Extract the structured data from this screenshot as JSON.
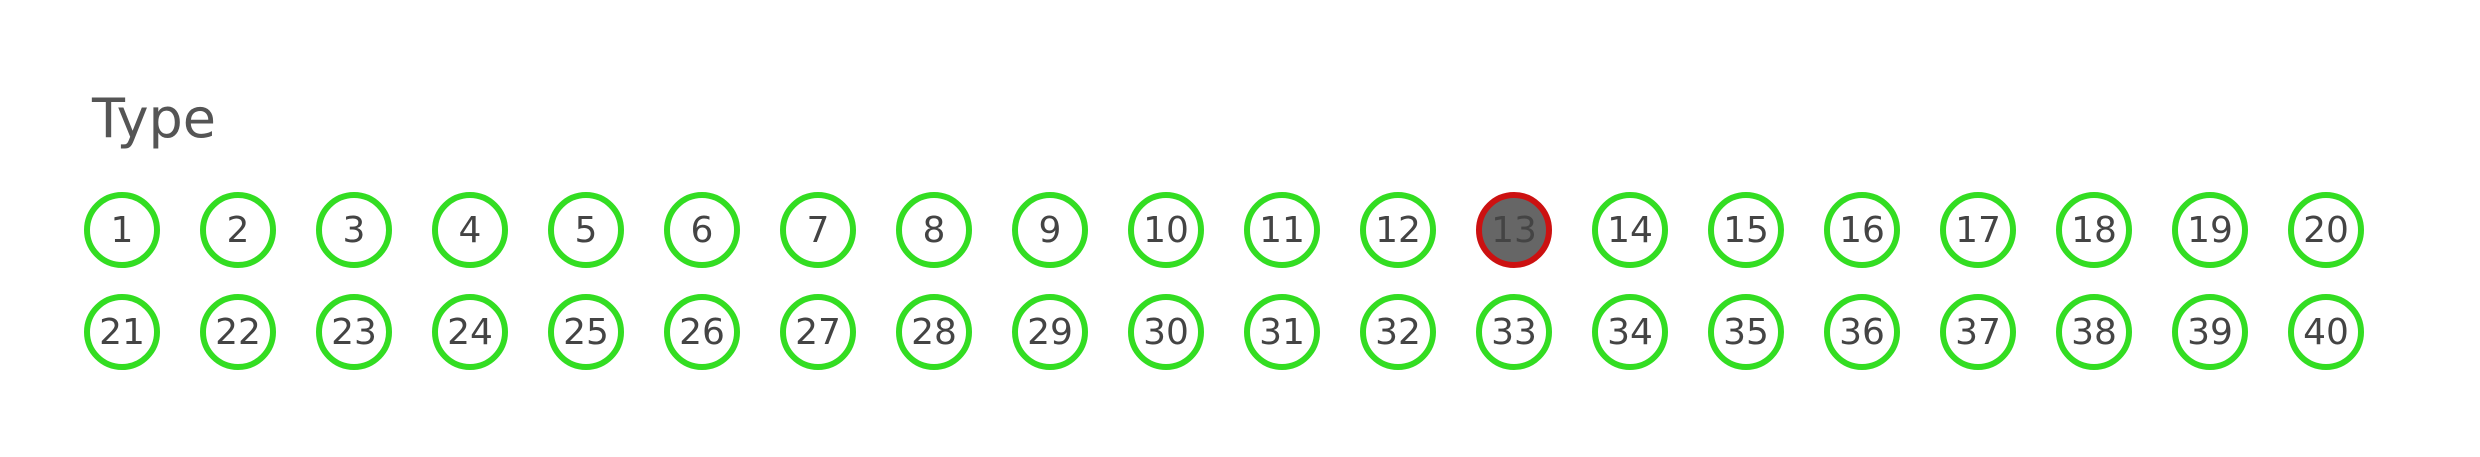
{
  "title": "Type",
  "colors": {
    "available_border": "#33dd22",
    "selected_border": "#cc1111",
    "selected_fill": "#666666",
    "text": "#444444"
  },
  "numbers": [
    {
      "label": "1",
      "state": "available"
    },
    {
      "label": "2",
      "state": "available"
    },
    {
      "label": "3",
      "state": "available"
    },
    {
      "label": "4",
      "state": "available"
    },
    {
      "label": "5",
      "state": "available"
    },
    {
      "label": "6",
      "state": "available"
    },
    {
      "label": "7",
      "state": "available"
    },
    {
      "label": "8",
      "state": "available"
    },
    {
      "label": "9",
      "state": "available"
    },
    {
      "label": "10",
      "state": "available"
    },
    {
      "label": "11",
      "state": "available"
    },
    {
      "label": "12",
      "state": "available"
    },
    {
      "label": "13",
      "state": "selected"
    },
    {
      "label": "14",
      "state": "available"
    },
    {
      "label": "15",
      "state": "available"
    },
    {
      "label": "16",
      "state": "available"
    },
    {
      "label": "17",
      "state": "available"
    },
    {
      "label": "18",
      "state": "available"
    },
    {
      "label": "19",
      "state": "available"
    },
    {
      "label": "20",
      "state": "available"
    },
    {
      "label": "21",
      "state": "available"
    },
    {
      "label": "22",
      "state": "available"
    },
    {
      "label": "23",
      "state": "available"
    },
    {
      "label": "24",
      "state": "available"
    },
    {
      "label": "25",
      "state": "available"
    },
    {
      "label": "26",
      "state": "available"
    },
    {
      "label": "27",
      "state": "available"
    },
    {
      "label": "28",
      "state": "available"
    },
    {
      "label": "29",
      "state": "available"
    },
    {
      "label": "30",
      "state": "available"
    },
    {
      "label": "31",
      "state": "available"
    },
    {
      "label": "32",
      "state": "available"
    },
    {
      "label": "33",
      "state": "available"
    },
    {
      "label": "34",
      "state": "available"
    },
    {
      "label": "35",
      "state": "available"
    },
    {
      "label": "36",
      "state": "available"
    },
    {
      "label": "37",
      "state": "available"
    },
    {
      "label": "38",
      "state": "available"
    },
    {
      "label": "39",
      "state": "available"
    },
    {
      "label": "40",
      "state": "available"
    }
  ]
}
